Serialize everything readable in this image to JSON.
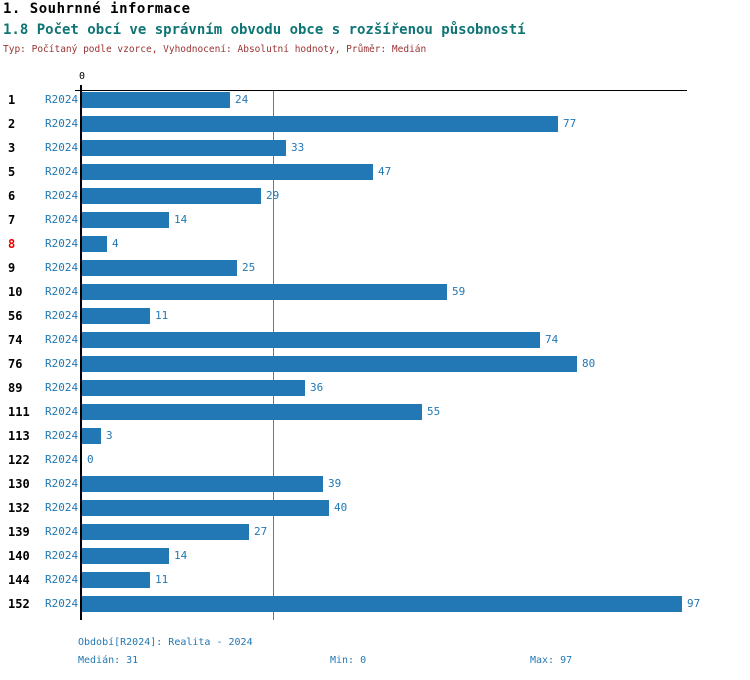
{
  "header": {
    "title": "1. Souhrnné informace",
    "subtitle": "1.8 Počet obcí ve správním obvodu obce s rozšířenou působností",
    "meta": "Typ: Počítaný podle vzorce, Vyhodnocení: Absolutní hodnoty, Průměr: Medián"
  },
  "colors": {
    "bar": "#2278b5",
    "blue_text": "#2278b5",
    "median_line": "#3c87be",
    "subtitle": "#0e7474",
    "meta": "#993333",
    "highlight_category": "#ee0000",
    "axis": "#000000"
  },
  "chart_data": {
    "type": "bar",
    "orientation": "horizontal",
    "title": "1.8 Počet obcí ve správním obvodu obce s rozšířenou působností",
    "series_label": "R2024",
    "axis_origin_label": "0",
    "xlim": [
      0,
      97
    ],
    "grid": false,
    "median_reference_line": 31,
    "rows": [
      {
        "category": "1",
        "value": 24
      },
      {
        "category": "2",
        "value": 77
      },
      {
        "category": "3",
        "value": 33
      },
      {
        "category": "5",
        "value": 47
      },
      {
        "category": "6",
        "value": 29
      },
      {
        "category": "7",
        "value": 14
      },
      {
        "category": "8",
        "value": 4,
        "highlight": true
      },
      {
        "category": "9",
        "value": 25
      },
      {
        "category": "10",
        "value": 59
      },
      {
        "category": "56",
        "value": 11
      },
      {
        "category": "74",
        "value": 74
      },
      {
        "category": "76",
        "value": 80
      },
      {
        "category": "89",
        "value": 36
      },
      {
        "category": "111",
        "value": 55
      },
      {
        "category": "113",
        "value": 3
      },
      {
        "category": "122",
        "value": 0
      },
      {
        "category": "130",
        "value": 39
      },
      {
        "category": "132",
        "value": 40
      },
      {
        "category": "139",
        "value": 27
      },
      {
        "category": "140",
        "value": 14
      },
      {
        "category": "144",
        "value": 11
      },
      {
        "category": "152",
        "value": 97
      }
    ]
  },
  "footer": {
    "period": "Období[R2024]: Realita - 2024",
    "median": "Medián: 31",
    "min": "Min: 0",
    "max": "Max: 97"
  }
}
